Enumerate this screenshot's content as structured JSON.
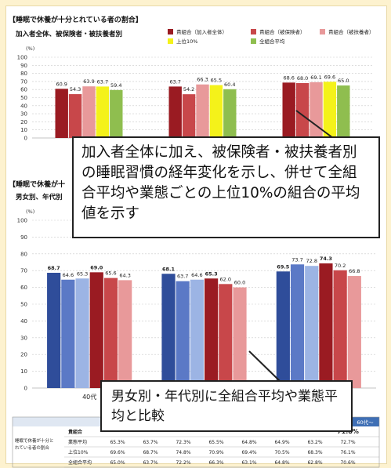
{
  "chart_data": [
    {
      "type": "bar",
      "title": "【睡眠で休養が十分とれている者の割合】",
      "subtitle": "加入者全体、被保険者・被扶養者別",
      "ylabel": "(%)",
      "ylim": [
        0,
        100
      ],
      "yticks": [
        "0",
        "10",
        "20",
        "30",
        "40",
        "50",
        "60",
        "70",
        "80",
        "90",
        "100"
      ],
      "categories": [
        "",
        "",
        ""
      ],
      "series": [
        {
          "name": "貴組合（加入者全体）",
          "color": "#9a1b22",
          "values": [
            60.9,
            63.7,
            68.6
          ]
        },
        {
          "name": "貴組合（被保険者）",
          "color": "#c8474a",
          "values": [
            54.3,
            54.2,
            68.0
          ]
        },
        {
          "name": "貴組合（被扶養者）",
          "color": "#e8999a",
          "values": [
            63.9,
            66.3,
            69.1
          ]
        },
        {
          "name": "上位10%",
          "color": "#f4f21a",
          "values": [
            63.7,
            65.5,
            69.6
          ]
        },
        {
          "name": "全組合平均",
          "color": "#8fbe4f",
          "values": [
            59.4,
            60.4,
            65.0
          ]
        }
      ],
      "data_labels": [
        [
          "60.9",
          "54.3",
          "63.9",
          "63.7",
          "59.4"
        ],
        [
          "63.7",
          "54.2",
          "66.3",
          "65.5",
          "60.4"
        ],
        [
          "68.6",
          "68.0",
          "69.1",
          "69.6",
          "65.0"
        ]
      ],
      "legend_position": "top-right",
      "grid": true
    },
    {
      "type": "bar",
      "title": "【睡眠で休養が十",
      "subtitle": "男女別、年代別",
      "ylabel": "(%)",
      "ylim": [
        0,
        100
      ],
      "yticks": [
        "0",
        "10",
        "20",
        "30",
        "40",
        "50",
        "60",
        "70",
        "80",
        "90",
        "100"
      ],
      "categories": [
        "40代",
        "",
        ""
      ],
      "series": [
        {
          "name": "",
          "color": "#2f4d9a",
          "values": [
            68.7,
            68.1,
            69.5
          ]
        },
        {
          "name": "",
          "color": "#5b79c6",
          "values": [
            64.6,
            63.7,
            73.7
          ]
        },
        {
          "name": "",
          "color": "#9cb4e4",
          "values": [
            65.3,
            64.6,
            72.8
          ]
        },
        {
          "name": "",
          "color": "#9a1b22",
          "values": [
            69.0,
            65.3,
            74.3
          ]
        },
        {
          "name": "",
          "color": "#c8474a",
          "values": [
            65.6,
            62.0,
            70.2
          ]
        },
        {
          "name": "",
          "color": "#e8999a",
          "values": [
            64.3,
            60.0,
            66.8
          ]
        }
      ],
      "data_labels": [
        [
          "68.7",
          "64.6",
          "65.3",
          "69.0",
          "65.6",
          "64.3"
        ],
        [
          "68.1",
          "63.7",
          "64.6",
          "65.3",
          "62.0",
          "60.0"
        ],
        [
          "69.5",
          "73.7",
          "72.8",
          "74.3",
          "70.2",
          "66.8"
        ]
      ],
      "grid": true
    },
    {
      "type": "table",
      "header": [
        "",
        "",
        "",
        "",
        "",
        "",
        "",
        "",
        "60代～"
      ],
      "group_label": "睡眠で休養が十分とれている者の割合",
      "rows": [
        {
          "label": "貴組合",
          "values": [
            "",
            "",
            "",
            "",
            "",
            "",
            "",
            "71.8%"
          ]
        },
        {
          "label": "業態平均",
          "values": [
            "65.3%",
            "63.7%",
            "72.3%",
            "65.5%",
            "64.8%",
            "64.9%",
            "63.2%",
            "72.7%"
          ]
        },
        {
          "label": "上位10%",
          "values": [
            "69.6%",
            "68.7%",
            "74.8%",
            "70.9%",
            "69.4%",
            "70.5%",
            "68.3%",
            "76.1%"
          ]
        },
        {
          "label": "全組合平均",
          "values": [
            "65.0%",
            "63.7%",
            "72.2%",
            "66.3%",
            "63.1%",
            "64.8%",
            "62.8%",
            "70.6%"
          ]
        }
      ]
    }
  ],
  "callouts": {
    "upper": "加入者全体に加え、被保険者・被扶養者別の睡眠習慣の経年変化を示し、併せて全組合平均や業態ごとの上位10%の組合の平均値を示す",
    "lower": "男女別・年代別に全組合平均や業態平均と比較"
  }
}
